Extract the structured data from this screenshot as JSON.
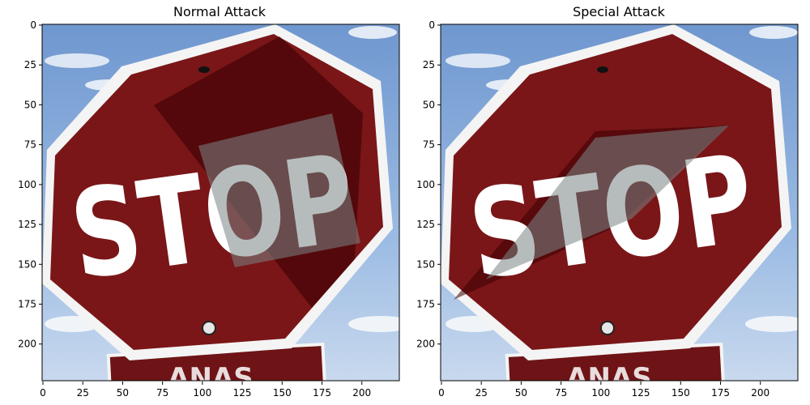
{
  "panels": [
    {
      "title": "Normal Attack",
      "sign_text": "STOP",
      "lower_sign_text": "ANAS",
      "x_ticks": [
        "0",
        "25",
        "50",
        "75",
        "100",
        "125",
        "150",
        "175",
        "200"
      ],
      "y_ticks": [
        "0",
        "25",
        "50",
        "75",
        "100",
        "125",
        "150",
        "175",
        "200"
      ]
    },
    {
      "title": "Special Attack",
      "sign_text": "STOP",
      "lower_sign_text": "ANAS",
      "x_ticks": [
        "0",
        "25",
        "50",
        "75",
        "100",
        "125",
        "150",
        "175",
        "200"
      ],
      "y_ticks": [
        "0",
        "25",
        "50",
        "75",
        "100",
        "125",
        "150",
        "175",
        "200"
      ]
    }
  ],
  "colors": {
    "sky": "#7fa3d6",
    "sign_red": "#7a1618",
    "sign_border": "#f4f4f4",
    "text_white": "#ffffff",
    "overlay_dark": "#3b0004",
    "overlay_gray": "#7a8585"
  }
}
